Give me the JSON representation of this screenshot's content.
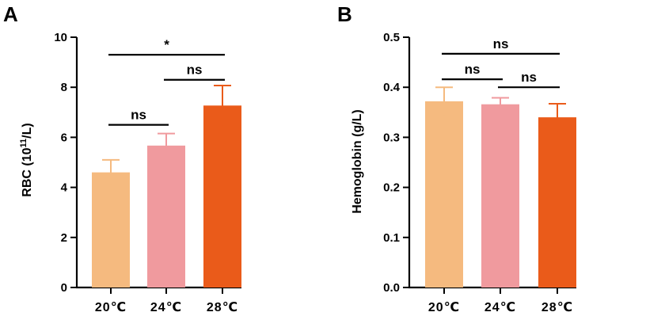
{
  "chart_data": [
    {
      "type": "bar",
      "panel": "A",
      "categories": [
        "20℃",
        "24℃",
        "28℃"
      ],
      "values": [
        4.6,
        5.67,
        7.27
      ],
      "errors": [
        0.5,
        0.48,
        0.8
      ],
      "colors": [
        "#F5BA7F",
        "#F09A9E",
        "#EA5B1A"
      ],
      "ylabel_main": "RBC (10",
      "ylabel_sup": "11",
      "ylabel_end": "/L)",
      "ylim": [
        0,
        10
      ],
      "yticks": [
        "0",
        "2",
        "4",
        "6",
        "8",
        "10"
      ],
      "significance": [
        {
          "from": 0,
          "to": 2,
          "label": "*",
          "level": 9.3
        },
        {
          "from": 1,
          "to": 2,
          "label": "ns",
          "level": 8.3
        },
        {
          "from": 0,
          "to": 1,
          "label": "ns",
          "level": 6.5
        }
      ]
    },
    {
      "type": "bar",
      "panel": "B",
      "categories": [
        "20℃",
        "24℃",
        "28℃"
      ],
      "values": [
        0.372,
        0.366,
        0.34
      ],
      "errors": [
        0.028,
        0.013,
        0.027
      ],
      "colors": [
        "#F5BA7F",
        "#F09A9E",
        "#EA5B1A"
      ],
      "ylabel": "Hemoglobin (g/L)",
      "ylim": [
        0,
        0.5
      ],
      "yticks": [
        "0.0",
        "0.1",
        "0.2",
        "0.3",
        "0.4",
        "0.5"
      ],
      "significance": [
        {
          "from": 0,
          "to": 2,
          "label": "ns",
          "level": 0.467
        },
        {
          "from": 0,
          "to": 1,
          "label": "ns",
          "level": 0.416
        },
        {
          "from": 1,
          "to": 2,
          "label": "ns",
          "level": 0.4
        }
      ]
    }
  ]
}
